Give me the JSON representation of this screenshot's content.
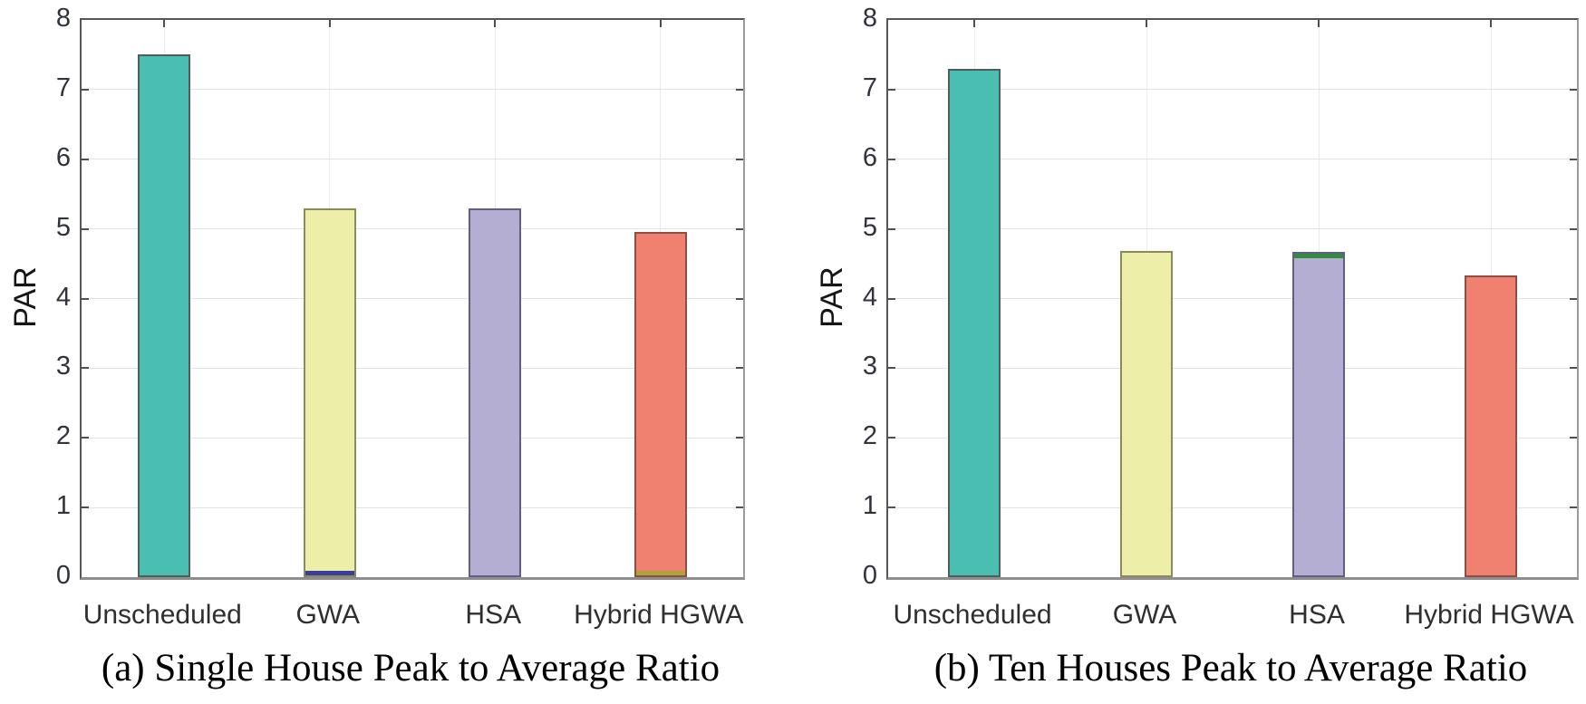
{
  "figure": {
    "background": "#ffffff",
    "description": "Peak to Average Ratio comparison bar charts"
  },
  "style": {
    "axis_color": "#565656",
    "grid_color": "#e2e2e2",
    "tick_label_color": "#30323c",
    "category_label_color": "#2f2f2f",
    "caption_color": "#000000"
  },
  "chart_data": [
    {
      "type": "bar",
      "panel": "a",
      "caption": "(a) Single House Peak to Average Ratio",
      "ylabel": "PAR",
      "ylim": [
        0,
        8
      ],
      "ytick_step": 1,
      "grid": true,
      "legend": null,
      "categories": [
        "Unscheduled",
        "GWA",
        "HSA",
        "Hybrid HGWA"
      ],
      "values": [
        7.5,
        5.3,
        5.3,
        4.95
      ],
      "bar_colors": [
        "#4ABEB1",
        "#EDEEA8",
        "#B4AED3",
        "#F0806F"
      ],
      "bar_edge_colors": [
        "#4d5f5c",
        "#8b8b59",
        "#625e86",
        "#8d4f41"
      ],
      "accents": [
        {
          "bar": 1,
          "position": "bottom",
          "color": "#3A3F9E"
        },
        {
          "bar": 3,
          "position": "bottom",
          "color": "#B0A23B"
        }
      ]
    },
    {
      "type": "bar",
      "panel": "b",
      "caption": "(b) Ten Houses Peak to Average Ratio",
      "ylabel": "PAR",
      "ylim": [
        0,
        8
      ],
      "ytick_step": 1,
      "grid": true,
      "legend": null,
      "categories": [
        "Unscheduled",
        "GWA",
        "HSA",
        "Hybrid HGWA"
      ],
      "values": [
        7.3,
        4.68,
        4.67,
        4.33
      ],
      "bar_colors": [
        "#4ABEB1",
        "#EDEEA8",
        "#B4AED3",
        "#F0806F"
      ],
      "bar_edge_colors": [
        "#4d5f5c",
        "#8b8b59",
        "#625e86",
        "#8d4f41"
      ],
      "accents": [
        {
          "bar": 2,
          "position": "top",
          "color": "#2F8C3C"
        }
      ]
    }
  ]
}
